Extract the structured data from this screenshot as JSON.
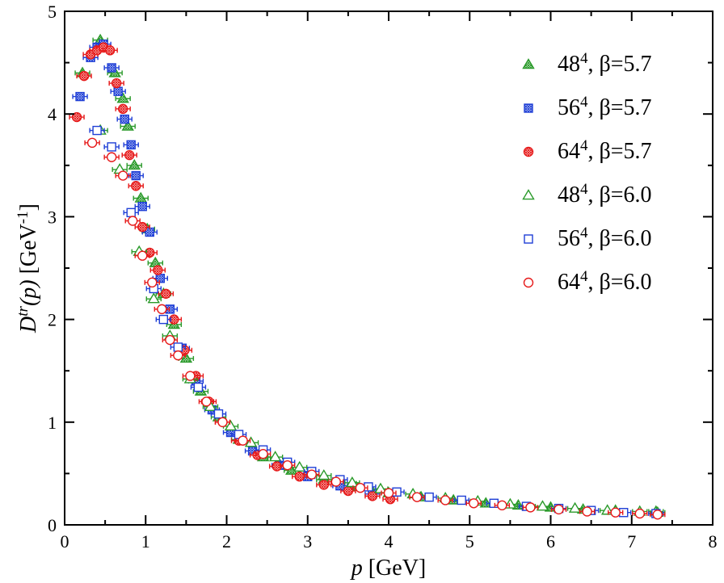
{
  "chart_data": {
    "type": "scatter",
    "xlabel": {
      "var": "p",
      "unit": " [GeV]"
    },
    "ylabel": {
      "var": "D",
      "sup": "tr",
      "arg": "(p)",
      "unit_open": " [GeV",
      "unit_sup": "-1",
      "unit_close": "]"
    },
    "xlim": [
      0,
      8
    ],
    "ylim": [
      0,
      5
    ],
    "x_ticks": [
      "0",
      "1",
      "2",
      "3",
      "4",
      "5",
      "6",
      "7",
      "8"
    ],
    "y_ticks": [
      "0",
      "1",
      "2",
      "3",
      "4",
      "5"
    ],
    "grid": false,
    "legend_position": "top-right",
    "series": [
      {
        "name": "48^4, β=5.7",
        "lattice": "48",
        "exp": "4",
        "beta": ", β=5.7",
        "marker": "triangle",
        "fill": "hatched",
        "color": "#2a9a2a",
        "x": [
          0.22,
          0.44,
          0.62,
          0.72,
          0.78,
          0.86,
          0.94,
          1.02,
          1.12,
          1.22,
          1.35,
          1.5,
          1.68,
          1.9,
          2.15,
          2.45,
          2.8,
          3.2,
          3.6,
          4.0,
          4.4,
          4.8,
          5.2,
          5.6,
          6.0,
          6.4,
          6.8,
          7.3
        ],
        "y": [
          4.4,
          4.72,
          4.4,
          4.15,
          3.88,
          3.5,
          3.18,
          2.88,
          2.55,
          2.25,
          1.95,
          1.62,
          1.3,
          1.05,
          0.83,
          0.66,
          0.53,
          0.44,
          0.37,
          0.31,
          0.27,
          0.24,
          0.21,
          0.19,
          0.17,
          0.15,
          0.14,
          0.13
        ]
      },
      {
        "name": "56^4, β=5.7",
        "lattice": "56",
        "exp": "4",
        "beta": ", β=5.7",
        "marker": "square",
        "fill": "hatched",
        "color": "#1f3fd6",
        "x": [
          0.19,
          0.32,
          0.4,
          0.48,
          0.58,
          0.66,
          0.74,
          0.82,
          0.88,
          0.96,
          1.05,
          1.18,
          1.3,
          1.45,
          1.62,
          1.82,
          2.05,
          2.32,
          2.65,
          3.0,
          3.4,
          3.8
        ],
        "y": [
          4.17,
          4.55,
          4.65,
          4.68,
          4.45,
          4.22,
          3.95,
          3.7,
          3.4,
          3.1,
          2.85,
          2.4,
          2.1,
          1.72,
          1.4,
          1.12,
          0.9,
          0.72,
          0.58,
          0.47,
          0.38,
          0.3
        ]
      },
      {
        "name": "64^4, β=5.7",
        "lattice": "64",
        "exp": "4",
        "beta": ", β=5.7",
        "marker": "circle",
        "fill": "hatched",
        "color": "#e61a1a",
        "x": [
          0.15,
          0.24,
          0.32,
          0.4,
          0.48,
          0.56,
          0.64,
          0.72,
          0.8,
          0.88,
          0.96,
          1.05,
          1.15,
          1.25,
          1.35,
          1.48,
          1.62,
          1.78,
          1.95,
          2.15,
          2.38,
          2.62,
          2.9,
          3.2,
          3.5,
          3.8,
          4.02
        ],
        "y": [
          3.97,
          4.37,
          4.58,
          4.62,
          4.65,
          4.62,
          4.3,
          4.05,
          3.6,
          3.3,
          2.9,
          2.65,
          2.48,
          2.25,
          2.0,
          1.7,
          1.45,
          1.2,
          1.0,
          0.82,
          0.68,
          0.57,
          0.47,
          0.39,
          0.33,
          0.28,
          0.25
        ]
      },
      {
        "name": "48^4, β=6.0",
        "lattice": "48",
        "exp": "4",
        "beta": ", β=6.0",
        "marker": "triangle",
        "fill": "open",
        "color": "#2a9a2a",
        "x": [
          0.44,
          0.68,
          0.92,
          1.1,
          1.3,
          1.55,
          1.8,
          2.05,
          2.3,
          2.6,
          2.9,
          3.2,
          3.55,
          3.9,
          4.3,
          4.7,
          5.1,
          5.5,
          5.9,
          6.3,
          6.7,
          7.1,
          7.32
        ],
        "y": [
          3.84,
          3.46,
          2.66,
          2.2,
          1.84,
          1.42,
          1.15,
          0.96,
          0.8,
          0.66,
          0.56,
          0.48,
          0.41,
          0.35,
          0.3,
          0.26,
          0.23,
          0.2,
          0.18,
          0.16,
          0.14,
          0.13,
          0.12
        ]
      },
      {
        "name": "56^4, β=6.0",
        "lattice": "56",
        "exp": "4",
        "beta": ", β=6.0",
        "marker": "square",
        "fill": "open",
        "color": "#1f3fd6",
        "x": [
          0.4,
          0.58,
          0.82,
          1.1,
          1.22,
          1.4,
          1.65,
          1.9,
          2.15,
          2.45,
          2.75,
          3.05,
          3.4,
          3.75,
          4.1,
          4.5,
          4.9,
          5.3,
          5.7,
          6.1,
          6.5,
          6.9,
          7.3
        ],
        "y": [
          3.84,
          3.68,
          3.04,
          2.3,
          2.0,
          1.73,
          1.34,
          1.08,
          0.88,
          0.73,
          0.61,
          0.52,
          0.44,
          0.37,
          0.32,
          0.27,
          0.24,
          0.21,
          0.18,
          0.16,
          0.14,
          0.12,
          0.11
        ]
      },
      {
        "name": "64^4, β=6.0",
        "lattice": "64",
        "exp": "4",
        "beta": ", β=6.0",
        "marker": "circle",
        "fill": "open",
        "color": "#e61a1a",
        "x": [
          0.34,
          0.58,
          0.72,
          0.84,
          0.96,
          1.08,
          1.2,
          1.3,
          1.4,
          1.55,
          1.75,
          1.95,
          2.2,
          2.45,
          2.75,
          3.05,
          3.35,
          3.65,
          4.0,
          4.35,
          4.7,
          5.05,
          5.4,
          5.75,
          6.1,
          6.45,
          6.8,
          7.1,
          7.32
        ],
        "y": [
          3.72,
          3.58,
          3.4,
          2.96,
          2.62,
          2.36,
          2.1,
          1.8,
          1.65,
          1.45,
          1.2,
          1.0,
          0.82,
          0.69,
          0.58,
          0.49,
          0.42,
          0.36,
          0.31,
          0.27,
          0.24,
          0.21,
          0.19,
          0.17,
          0.15,
          0.13,
          0.12,
          0.11,
          0.1
        ]
      }
    ]
  }
}
